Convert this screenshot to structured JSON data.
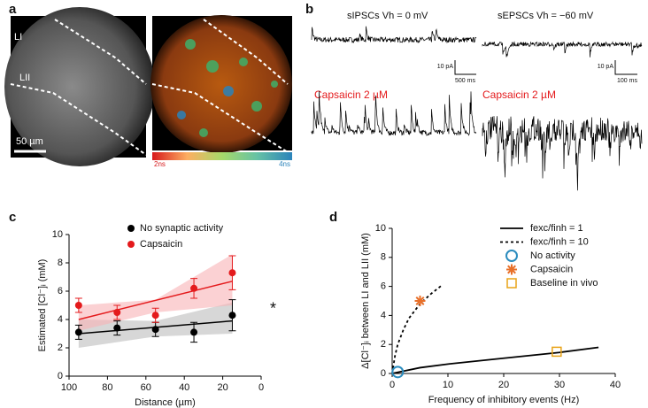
{
  "panels": {
    "a": {
      "label": "a",
      "layer_1": "LI",
      "layer_2": "LII",
      "scale_bar": "50 µm",
      "colorbar_min": "2ns",
      "colorbar_max": "4ns"
    },
    "b": {
      "label": "b",
      "title_left": "sIPSCs Vh = 0 mV",
      "title_right": "sEPSCs Vh = −60 mV",
      "scale_left_y": "10 pA",
      "scale_left_x": "500 ms",
      "scale_right_y": "10 pA",
      "scale_right_x": "100 ms",
      "treatment_left": "Capsaicin 2 µM",
      "treatment_right": "Capsaicin 2 µM"
    }
  },
  "chart_data": [
    {
      "type": "scatter",
      "panel_label": "c",
      "xlabel": "Distance (µm)",
      "ylabel": "Estimated [Cl⁻]ᵢ (mM)",
      "xlim": [
        100,
        0
      ],
      "ylim": [
        0,
        10
      ],
      "xticks": [
        100,
        80,
        60,
        40,
        20,
        0
      ],
      "yticks": [
        0,
        2,
        4,
        6,
        8,
        10
      ],
      "legend": "top-left",
      "annotation": "*",
      "series": [
        {
          "name": "No synaptic activity",
          "color": "#000000",
          "x": [
            95,
            75,
            55,
            35,
            15
          ],
          "values": [
            3.1,
            3.4,
            3.3,
            3.1,
            4.3
          ],
          "errors": [
            0.5,
            0.5,
            0.5,
            0.7,
            1.1
          ]
        },
        {
          "name": "Capsaicin",
          "color": "#e41a1c",
          "x": [
            95,
            75,
            55,
            35,
            15
          ],
          "values": [
            5.0,
            4.5,
            4.3,
            6.2,
            7.3
          ],
          "errors": [
            0.5,
            0.5,
            0.5,
            0.7,
            1.2
          ]
        }
      ],
      "fits": [
        {
          "color": "#000000",
          "x": [
            95,
            15
          ],
          "values": [
            3.0,
            3.9
          ]
        },
        {
          "color": "#e41a1c",
          "x": [
            95,
            15
          ],
          "values": [
            4.0,
            6.7
          ]
        }
      ],
      "bands": [
        {
          "color": "#bdbdbd",
          "x": [
            95,
            55,
            15
          ],
          "lower": [
            2.0,
            2.8,
            3.0
          ],
          "upper": [
            4.0,
            3.9,
            5.2
          ]
        },
        {
          "color": "#f9b3b5",
          "x": [
            95,
            55,
            15
          ],
          "lower": [
            3.2,
            4.5,
            5.0
          ],
          "upper": [
            5.0,
            5.4,
            8.6
          ]
        }
      ]
    },
    {
      "type": "line",
      "panel_label": "d",
      "xlabel": "Frequency of inhibitory events (Hz)",
      "ylabel": "Δ[Cl⁻]ᵢ between LI and LII (mM)",
      "xlim": [
        0,
        40
      ],
      "ylim": [
        0,
        10
      ],
      "xticks": [
        0,
        10,
        20,
        30,
        40
      ],
      "yticks": [
        0,
        2,
        4,
        6,
        8,
        10
      ],
      "legend": "top-right",
      "series": [
        {
          "name": "fexc/finh = 1",
          "color": "#000000",
          "style": "solid",
          "x": [
            0,
            5,
            10,
            20,
            30,
            37
          ],
          "values": [
            0,
            0.4,
            0.65,
            1.05,
            1.45,
            1.8
          ]
        },
        {
          "name": "fexc/finh = 10",
          "color": "#000000",
          "style": "dashed",
          "x": [
            0,
            0.5,
            1,
            2,
            3,
            5,
            7,
            9
          ],
          "values": [
            0,
            1.2,
            2,
            3,
            3.8,
            4.8,
            5.5,
            6.1
          ]
        },
        {
          "name": "No activity",
          "color": "#2b8cbe",
          "style": "circle",
          "x": [
            1
          ],
          "values": [
            0.1
          ]
        },
        {
          "name": "Capsaicin",
          "color": "#e8702a",
          "style": "asterisk",
          "x": [
            5
          ],
          "values": [
            5
          ]
        },
        {
          "name": "Baseline in vivo",
          "color": "#e8a317",
          "style": "square",
          "x": [
            29.5
          ],
          "values": [
            1.5
          ]
        }
      ]
    }
  ]
}
